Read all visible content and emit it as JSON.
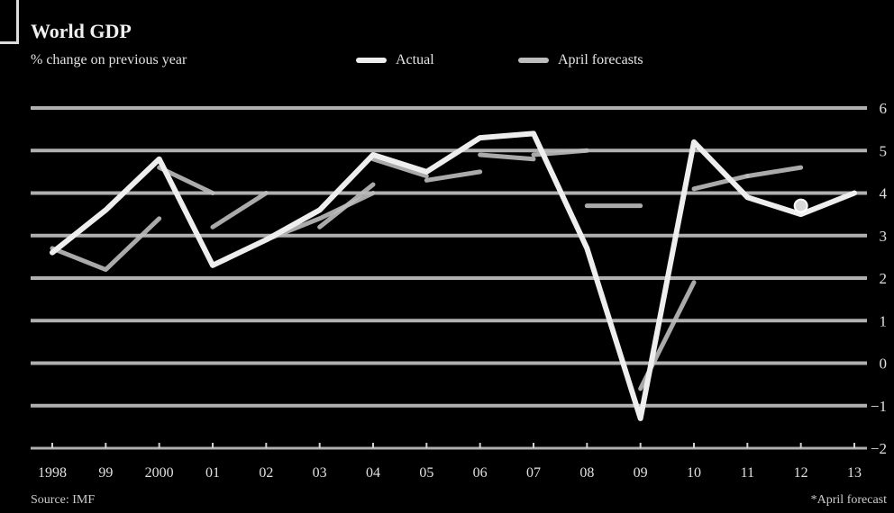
{
  "chart_data": {
    "type": "line",
    "title": "World GDP",
    "subtitle": "% change on previous year",
    "legend": [
      {
        "name": "Actual",
        "color": "#eeeeee"
      },
      {
        "name": "April forecasts",
        "color": "#bdbdbd"
      }
    ],
    "categories": [
      "1998",
      "99",
      "2000",
      "01",
      "02",
      "03",
      "04",
      "05",
      "06",
      "07",
      "08",
      "09",
      "10",
      "11",
      "12",
      "13"
    ],
    "ylim": [
      -2,
      6
    ],
    "yticks": [
      6,
      5,
      4,
      3,
      2,
      1,
      0,
      -1,
      -2
    ],
    "series": [
      {
        "name": "Actual",
        "values": [
          2.6,
          3.6,
          4.8,
          2.3,
          2.9,
          3.6,
          4.9,
          4.5,
          5.3,
          5.4,
          2.7,
          -1.3,
          5.2,
          3.9,
          3.5,
          4.0
        ]
      },
      {
        "name": "April forecasts",
        "segments": [
          {
            "start": 0,
            "values": [
              2.7,
              2.2,
              3.4
            ]
          },
          {
            "start": 2,
            "values": [
              4.6,
              4.0
            ]
          },
          {
            "start": 3,
            "values": [
              3.2,
              4.0
            ]
          },
          {
            "start": 4,
            "values": [
              2.9,
              3.4,
              4.0
            ]
          },
          {
            "start": 5,
            "values": [
              3.2,
              4.2
            ]
          },
          {
            "start": 6,
            "values": [
              4.8,
              4.4
            ]
          },
          {
            "start": 7,
            "values": [
              4.3,
              4.5
            ]
          },
          {
            "start": 8,
            "values": [
              4.9,
              4.8
            ]
          },
          {
            "start": 9,
            "values": [
              4.9,
              5.0
            ]
          },
          {
            "start": 10,
            "values": [
              3.7,
              3.7
            ]
          },
          {
            "start": 11,
            "values": [
              -0.6,
              1.9
            ]
          },
          {
            "start": 12,
            "values": [
              4.1,
              4.4
            ]
          },
          {
            "start": 13,
            "values": [
              4.4,
              4.6
            ]
          }
        ]
      }
    ],
    "marker": {
      "category_index": 14,
      "value": 3.7
    },
    "source": "Source: IMF",
    "footnote": "*April forecast"
  }
}
